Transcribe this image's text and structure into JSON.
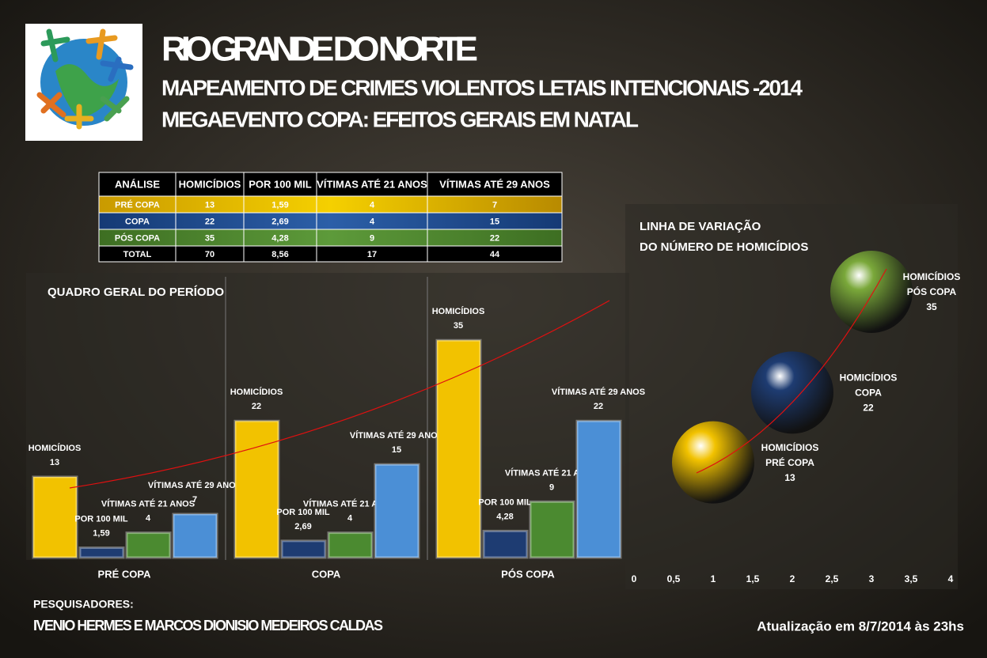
{
  "header": {
    "title": "RIO GRANDE DO NORTE",
    "subtitles": [
      "MAPEAMENTO DE CRIMES VIOLENTOS LETAIS INTENCIONAIS -2014",
      "MEGAEVENTO COPA: EFEITOS GERAIS EM NATAL"
    ]
  },
  "table": {
    "header": [
      "ANÁLISE",
      "HOMICÍDIOS",
      "POR 100 MIL",
      "VÍTIMAS ATÉ 21 ANOS",
      "VÍTIMAS ATÉ 29 ANOS"
    ],
    "rows": [
      [
        "PRÉ COPA",
        "13",
        "1,59",
        "4",
        "7"
      ],
      [
        "COPA",
        "22",
        "2,69",
        "4",
        "15"
      ],
      [
        "PÓS COPA",
        "35",
        "4,28",
        "9",
        "22"
      ],
      [
        "TOTAL",
        "70",
        "8,56",
        "17",
        "44"
      ]
    ]
  },
  "chart_data": [
    {
      "type": "bar",
      "title": "QUADRO GERAL DO PERÍODO",
      "categories": [
        "PRÉ COPA",
        "COPA",
        "PÓS COPA"
      ],
      "series": [
        {
          "name": "HOMICÍDIOS",
          "color": "#f2c200",
          "values": [
            13,
            22,
            35
          ]
        },
        {
          "name": "POR 100 MIL",
          "color": "#1e3c72",
          "values": [
            1.59,
            2.69,
            4.28
          ],
          "value_labels": [
            "1,59",
            "2,69",
            "4,28"
          ]
        },
        {
          "name": "VÍTIMAS ATÉ 21 ANOS",
          "color": "#4b8a30",
          "values": [
            4,
            4,
            9
          ]
        },
        {
          "name": "VÍTIMAS ATÉ 29 ANOS",
          "color": "#4b8fd6",
          "values": [
            7,
            15,
            22
          ]
        }
      ]
    },
    {
      "type": "bubble",
      "title": [
        "LINHA DE VARIAÇÃO",
        "DO NÚMERO DE HOMICÍDIOS"
      ],
      "x": [
        1,
        2,
        3
      ],
      "series": [
        {
          "name": "HOMICÍDIOS",
          "values": [
            13,
            22,
            35
          ]
        }
      ],
      "point_labels": [
        "PRÉ COPA",
        "COPA",
        "PÓS COPA"
      ],
      "colors": [
        "#f2c200",
        "#1e3c72",
        "#7aa83a"
      ],
      "xlim": [
        0,
        4
      ],
      "xticks": [
        0,
        {
          "value": 0.5,
          "label": "0,5"
        },
        1,
        {
          "value": 1.5,
          "label": "1,5"
        },
        2,
        {
          "value": 2.5,
          "label": "2,5"
        },
        3,
        {
          "value": 3.5,
          "label": "3,5"
        },
        4
      ]
    }
  ],
  "footer": {
    "label": "PESQUISADORES:",
    "authors": "IVENIO HERMES E MARCOS DIONISIO MEDEIROS CALDAS",
    "update": "Atualização em 8/7/2014 às 23hs"
  }
}
